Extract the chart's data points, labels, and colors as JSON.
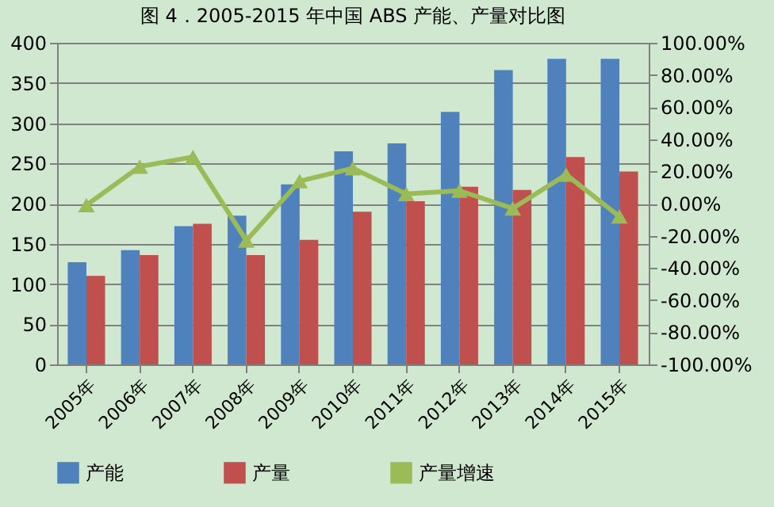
{
  "chart_data": {
    "type": "bar",
    "title": "图 4．2005-2015 年中国 ABS 产能、产量对比图",
    "categories": [
      "2005年",
      "2006年",
      "2007年",
      "2008年",
      "2009年",
      "2010年",
      "2011年",
      "2012年",
      "2013年",
      "2014年",
      "2015年"
    ],
    "series": [
      {
        "name": "产能",
        "color": "#4f81bd",
        "values": [
          127,
          142,
          172,
          185,
          224,
          265,
          275,
          314,
          366,
          380,
          380
        ]
      },
      {
        "name": "产量",
        "color": "#c0504d",
        "values": [
          110,
          136,
          175,
          136,
          155,
          190,
          203,
          221,
          217,
          258,
          240
        ]
      },
      {
        "name": "产量增速",
        "type": "line",
        "axis": "y2",
        "color": "#9bbb59",
        "values": [
          -1,
          23,
          29,
          -23,
          14,
          22,
          6,
          8,
          -3,
          18,
          -8
        ]
      }
    ],
    "ylim": [
      0,
      400
    ],
    "yticks": [
      0,
      50,
      100,
      150,
      200,
      250,
      300,
      350,
      400
    ],
    "y2lim": [
      -100,
      100
    ],
    "y2ticks": [
      {
        "value": -100,
        "label": "-100.00%"
      },
      {
        "value": -80,
        "label": "-80.00%"
      },
      {
        "value": -60,
        "label": "-60.00%"
      },
      {
        "value": -40,
        "label": "-40.00%"
      },
      {
        "value": -20,
        "label": "-20.00%"
      },
      {
        "value": 0,
        "label": "0.00%"
      },
      {
        "value": 20,
        "label": "20.00%"
      },
      {
        "value": 40,
        "label": "40.00%"
      },
      {
        "value": 60,
        "label": "60.00%"
      },
      {
        "value": 80,
        "label": "80.00%"
      },
      {
        "value": 100,
        "label": "100.00%"
      }
    ],
    "grid": "y",
    "legend": "bottom",
    "marker": "triangle"
  }
}
